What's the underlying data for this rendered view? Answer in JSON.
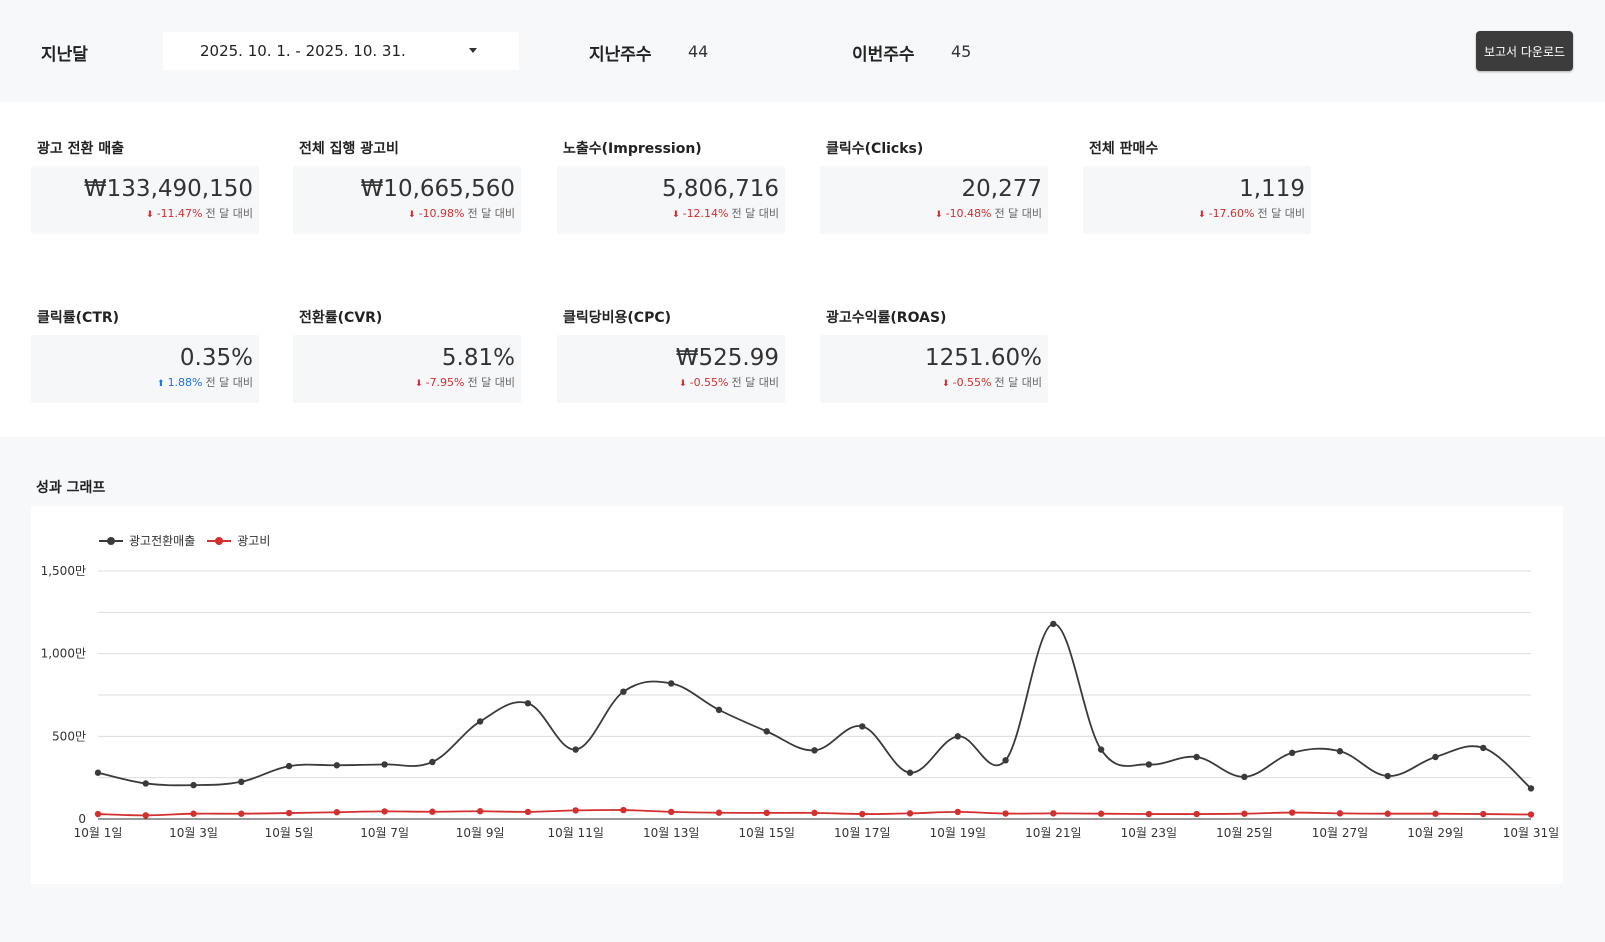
{
  "filters": {
    "period_label": "지난달",
    "date_range": "2025. 10. 1. - 2025. 10. 31.",
    "last_week_label": "지난주수",
    "last_week_value": "44",
    "this_week_label": "이번주수",
    "this_week_value": "45",
    "download_label": "보고서 다운로드"
  },
  "kpis": [
    {
      "title": "광고 전환 매출",
      "value": "₩133,490,150",
      "delta": "-11.47%",
      "direction": "down",
      "suffix": "전 달 대비"
    },
    {
      "title": "전체 집행 광고비",
      "value": "₩10,665,560",
      "delta": "-10.98%",
      "direction": "down",
      "suffix": "전 달 대비"
    },
    {
      "title": "노출수(Impression)",
      "value": "5,806,716",
      "delta": "-12.14%",
      "direction": "down",
      "suffix": "전 달 대비"
    },
    {
      "title": "클릭수(Clicks)",
      "value": "20,277",
      "delta": "-10.48%",
      "direction": "down",
      "suffix": "전 달 대비"
    },
    {
      "title": "전체 판매수",
      "value": "1,119",
      "delta": "-17.60%",
      "direction": "down",
      "suffix": "전 달 대비"
    },
    {
      "title": "클릭률(CTR)",
      "value": "0.35%",
      "delta": "1.88%",
      "direction": "up",
      "suffix": "전 달 대비"
    },
    {
      "title": "전환률(CVR)",
      "value": "5.81%",
      "delta": "-7.95%",
      "direction": "down",
      "suffix": "전 달 대비"
    },
    {
      "title": "클릭당비용(CPC)",
      "value": "₩525.99",
      "delta": "-0.55%",
      "direction": "down",
      "suffix": "전 달 대비"
    },
    {
      "title": "광고수익률(ROAS)",
      "value": "1251.60%",
      "delta": "-0.55%",
      "direction": "down",
      "suffix": "전 달 대비"
    }
  ],
  "graph": {
    "title": "성과 그래프"
  },
  "colors": {
    "revenue": "#3a3a3a",
    "ad_cost": "#d32f2f",
    "down": "#d32f2f",
    "up": "#1a73e8"
  },
  "chart_data": {
    "type": "line",
    "x": [
      "10월 1일",
      "10월 2일",
      "10월 3일",
      "10월 4일",
      "10월 5일",
      "10월 6일",
      "10월 7일",
      "10월 8일",
      "10월 9일",
      "10월 10일",
      "10월 11일",
      "10월 12일",
      "10월 13일",
      "10월 14일",
      "10월 15일",
      "10월 16일",
      "10월 17일",
      "10월 18일",
      "10월 19일",
      "10월 20일",
      "10월 21일",
      "10월 22일",
      "10월 23일",
      "10월 24일",
      "10월 25일",
      "10월 26일",
      "10월 27일",
      "10월 28일",
      "10월 29일",
      "10월 30일",
      "10월 31일"
    ],
    "x_tick_labels": [
      "10월 1일",
      "10월 3일",
      "10월 5일",
      "10월 7일",
      "10월 9일",
      "10월 11일",
      "10월 13일",
      "10월 15일",
      "10월 17일",
      "10월 19일",
      "10월 21일",
      "10월 23일",
      "10월 25일",
      "10월 27일",
      "10월 29일",
      "10월 31일"
    ],
    "series": [
      {
        "name": "광고전환매출",
        "values": [
          2800000,
          2150000,
          2050000,
          2250000,
          3200000,
          3250000,
          3300000,
          3450000,
          5900000,
          7000000,
          4200000,
          7700000,
          8200000,
          6600000,
          5300000,
          4150000,
          5600000,
          2800000,
          5000000,
          3550000,
          11800000,
          4200000,
          3300000,
          3750000,
          2550000,
          4000000,
          4100000,
          2600000,
          3750000,
          4300000,
          1850000
        ]
      },
      {
        "name": "광고비",
        "values": [
          300000,
          220000,
          320000,
          320000,
          360000,
          410000,
          460000,
          440000,
          470000,
          430000,
          520000,
          540000,
          430000,
          380000,
          370000,
          370000,
          300000,
          340000,
          430000,
          330000,
          340000,
          320000,
          300000,
          300000,
          320000,
          390000,
          340000,
          320000,
          320000,
          300000,
          270000
        ]
      }
    ],
    "y_tick_labels": [
      "0",
      "500만",
      "1,000만",
      "1,500만"
    ],
    "y_ticks": [
      0,
      5000000,
      10000000,
      15000000
    ],
    "ylim": [
      0,
      15000000
    ],
    "grid": true,
    "legend": "top-left"
  }
}
